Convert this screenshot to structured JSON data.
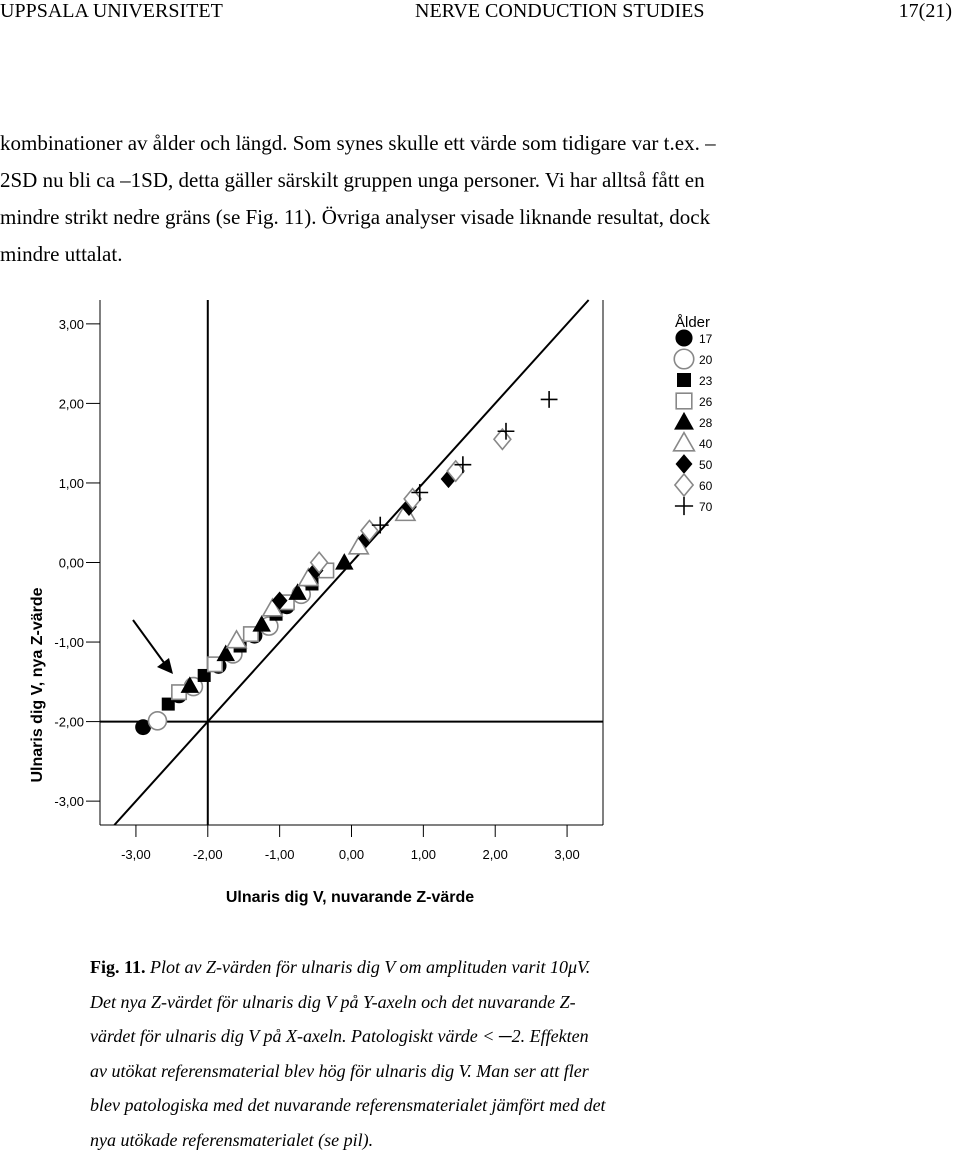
{
  "header": {
    "left": "UPPSALA UNIVERSITET",
    "center": "NERVE CONDUCTION STUDIES",
    "right": "17(21)"
  },
  "paragraph": {
    "lines": [
      "kombinationer av ålder och längd. Som synes skulle ett värde som tidigare var t.ex. –",
      "2SD nu bli ca –1SD, detta gäller särskilt gruppen unga personer. Vi har alltså fått en",
      "mindre strikt nedre gräns (se Fig. 11). Övriga analyser visade liknande resultat, dock",
      "mindre uttalat."
    ]
  },
  "chart_data": {
    "type": "scatter",
    "xlabel": "Ulnaris dig V, nuvarande Z-värde",
    "ylabel": "Ulnaris dig V, nya Z-värde",
    "xlim": [
      -3.5,
      3.5
    ],
    "ylim": [
      -3.3,
      3.3
    ],
    "x_ticks": [
      "-3,00",
      "-2,00",
      "-1,00",
      "0,00",
      "1,00",
      "2,00",
      "3,00"
    ],
    "y_ticks": [
      "3,00",
      "2,00",
      "1,00",
      "0,00",
      "-1,00",
      "-2,00",
      "-3,00"
    ],
    "reference_lines": [
      "x=-2",
      "y=-2",
      "y=x"
    ],
    "legend_title": "Ålder",
    "legend_placement": "top-right",
    "series": [
      {
        "name": "17",
        "marker": "filled-circle",
        "points": [
          [
            -2.9,
            -2.07
          ],
          [
            -2.4,
            -1.67
          ],
          [
            -1.85,
            -1.3
          ],
          [
            -1.35,
            -0.92
          ],
          [
            -0.9,
            -0.55
          ]
        ]
      },
      {
        "name": "20",
        "marker": "open-circle",
        "points": [
          [
            -2.7,
            -1.99
          ],
          [
            -2.2,
            -1.56
          ],
          [
            -1.65,
            -1.15
          ],
          [
            -1.15,
            -0.8
          ],
          [
            -0.7,
            -0.4
          ]
        ]
      },
      {
        "name": "23",
        "marker": "filled-square",
        "points": [
          [
            -2.55,
            -1.78
          ],
          [
            -2.05,
            -1.42
          ],
          [
            -1.55,
            -1.05
          ],
          [
            -1.05,
            -0.65
          ],
          [
            -0.55,
            -0.27
          ]
        ]
      },
      {
        "name": "26",
        "marker": "open-square",
        "points": [
          [
            -2.4,
            -1.63
          ],
          [
            -1.9,
            -1.28
          ],
          [
            -1.4,
            -0.9
          ],
          [
            -0.9,
            -0.5
          ],
          [
            -0.35,
            -0.1
          ]
        ]
      },
      {
        "name": "28",
        "marker": "filled-triangle",
        "points": [
          [
            -2.25,
            -1.55
          ],
          [
            -1.75,
            -1.15
          ],
          [
            -1.25,
            -0.78
          ],
          [
            -0.75,
            -0.38
          ],
          [
            -0.1,
            0.0
          ]
        ]
      },
      {
        "name": "40",
        "marker": "open-triangle",
        "points": [
          [
            -1.6,
            -0.98
          ],
          [
            -1.1,
            -0.58
          ],
          [
            -0.6,
            -0.2
          ],
          [
            0.1,
            0.2
          ],
          [
            0.75,
            0.62
          ]
        ]
      },
      {
        "name": "50",
        "marker": "filled-diamond",
        "points": [
          [
            -1.0,
            -0.48
          ],
          [
            -0.5,
            -0.1
          ],
          [
            0.2,
            0.3
          ],
          [
            0.8,
            0.7
          ],
          [
            1.35,
            1.05
          ]
        ]
      },
      {
        "name": "60",
        "marker": "open-diamond",
        "points": [
          [
            -0.45,
            0.0
          ],
          [
            0.25,
            0.4
          ],
          [
            0.85,
            0.8
          ],
          [
            1.45,
            1.15
          ],
          [
            2.1,
            1.55
          ]
        ]
      },
      {
        "name": "70",
        "marker": "plus",
        "points": [
          [
            0.4,
            0.47
          ],
          [
            0.95,
            0.88
          ],
          [
            1.55,
            1.23
          ],
          [
            2.15,
            1.65
          ],
          [
            2.75,
            2.05
          ]
        ]
      }
    ]
  },
  "caption": {
    "label": "Fig. 11.",
    "lines": [
      " Plot av Z-värden för ulnaris dig V om amplituden varit 10μV.",
      "Det nya Z-värdet för ulnaris dig V på Y-axeln och det nuvarande Z-",
      "värdet för ulnaris dig V på X-axeln. Patologiskt värde < ─2. Effekten",
      "av utökat referensmaterial blev hög för ulnaris dig V. Man ser att fler",
      "blev patologiska med det nuvarande referensmaterialet jämfört med det",
      "nya utökade referensmaterialet (se pil)."
    ]
  }
}
